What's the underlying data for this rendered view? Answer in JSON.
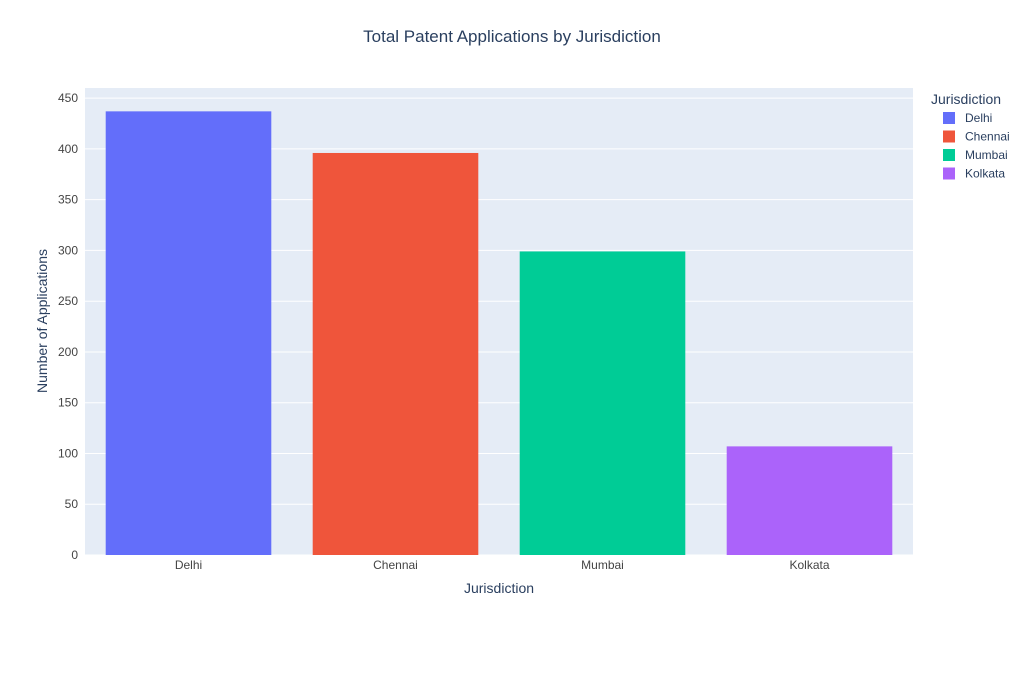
{
  "chart_data": {
    "type": "bar",
    "title": "Total Patent Applications by Jurisdiction",
    "xlabel": "Jurisdiction",
    "ylabel": "Number of Applications",
    "categories": [
      "Delhi",
      "Chennai",
      "Mumbai",
      "Kolkata"
    ],
    "series": [
      {
        "name": "Delhi",
        "category": "Delhi",
        "value": 437,
        "color": "#636EFA"
      },
      {
        "name": "Chennai",
        "category": "Chennai",
        "value": 396,
        "color": "#EF553B"
      },
      {
        "name": "Mumbai",
        "category": "Mumbai",
        "value": 299,
        "color": "#00CC96"
      },
      {
        "name": "Kolkata",
        "category": "Kolkata",
        "value": 107,
        "color": "#AB63FA"
      }
    ],
    "ylim": [
      0,
      460
    ],
    "yticks": [
      0,
      50,
      100,
      150,
      200,
      250,
      300,
      350,
      400,
      450
    ],
    "grid": true,
    "legend": {
      "title": "Jurisdiction",
      "placement": "right"
    },
    "colors": {
      "plot_background": "#E5ECF6",
      "grid": "#ffffff",
      "text": "#2a3f5f",
      "tick_text": "#444444"
    }
  }
}
